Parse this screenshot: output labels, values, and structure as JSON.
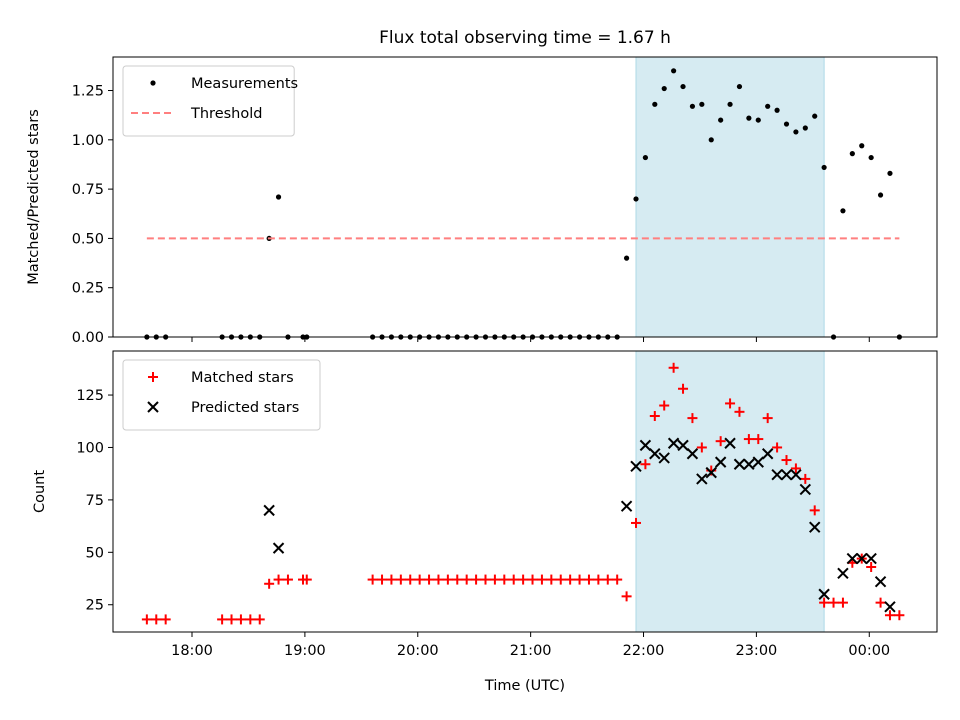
{
  "chart_data": [
    {
      "type": "scatter",
      "title": "Flux total observing time = 1.67 h",
      "ylabel": "Matched/Predicted stars",
      "xlabel": "",
      "xlim": [
        "17:18",
        "00:36"
      ],
      "ylim": [
        0,
        1.42
      ],
      "yticks": [
        0.0,
        0.25,
        0.5,
        0.75,
        1.0,
        1.25
      ],
      "ytick_labels": [
        "0.00",
        "0.25",
        "0.50",
        "0.75",
        "1.00",
        "1.25"
      ],
      "legend_position": "top-left",
      "shaded_span": [
        "21:56",
        "23:36"
      ],
      "shade_color": "#add8e6",
      "series": [
        {
          "name": "Measurements",
          "marker": "dot",
          "color": "#000000",
          "points": [
            [
              "17:36",
              0.0
            ],
            [
              "17:41",
              0.0
            ],
            [
              "17:46",
              0.0
            ],
            [
              "18:16",
              0.0
            ],
            [
              "18:21",
              0.0
            ],
            [
              "18:26",
              0.0
            ],
            [
              "18:31",
              0.0
            ],
            [
              "18:36",
              0.0
            ],
            [
              "18:41",
              0.5
            ],
            [
              "18:46",
              0.71
            ],
            [
              "18:51",
              0.0
            ],
            [
              "18:59",
              0.0
            ],
            [
              "19:01",
              0.0
            ],
            [
              "19:36",
              0.0
            ],
            [
              "19:41",
              0.0
            ],
            [
              "19:46",
              0.0
            ],
            [
              "19:51",
              0.0
            ],
            [
              "19:56",
              0.0
            ],
            [
              "20:01",
              0.0
            ],
            [
              "20:06",
              0.0
            ],
            [
              "20:11",
              0.0
            ],
            [
              "20:16",
              0.0
            ],
            [
              "20:21",
              0.0
            ],
            [
              "20:26",
              0.0
            ],
            [
              "20:31",
              0.0
            ],
            [
              "20:36",
              0.0
            ],
            [
              "20:41",
              0.0
            ],
            [
              "20:46",
              0.0
            ],
            [
              "20:51",
              0.0
            ],
            [
              "20:56",
              0.0
            ],
            [
              "21:01",
              0.0
            ],
            [
              "21:06",
              0.0
            ],
            [
              "21:11",
              0.0
            ],
            [
              "21:16",
              0.0
            ],
            [
              "21:21",
              0.0
            ],
            [
              "21:26",
              0.0
            ],
            [
              "21:31",
              0.0
            ],
            [
              "21:36",
              0.0
            ],
            [
              "21:41",
              0.0
            ],
            [
              "21:46",
              0.0
            ],
            [
              "21:51",
              0.4
            ],
            [
              "21:56",
              0.7
            ],
            [
              "22:01",
              0.91
            ],
            [
              "22:06",
              1.18
            ],
            [
              "22:11",
              1.26
            ],
            [
              "22:16",
              1.35
            ],
            [
              "22:21",
              1.27
            ],
            [
              "22:26",
              1.17
            ],
            [
              "22:31",
              1.18
            ],
            [
              "22:36",
              1.0
            ],
            [
              "22:41",
              1.1
            ],
            [
              "22:46",
              1.18
            ],
            [
              "22:51",
              1.27
            ],
            [
              "22:56",
              1.11
            ],
            [
              "23:01",
              1.1
            ],
            [
              "23:06",
              1.17
            ],
            [
              "23:11",
              1.15
            ],
            [
              "23:16",
              1.08
            ],
            [
              "23:21",
              1.04
            ],
            [
              "23:26",
              1.06
            ],
            [
              "23:31",
              1.12
            ],
            [
              "23:36",
              0.86
            ],
            [
              "23:41",
              0.0
            ],
            [
              "23:46",
              0.64
            ],
            [
              "23:51",
              0.93
            ],
            [
              "23:56",
              0.97
            ],
            [
              "00:01",
              0.91
            ],
            [
              "00:06",
              0.72
            ],
            [
              "00:11",
              0.83
            ],
            [
              "00:16",
              0.0
            ]
          ]
        },
        {
          "name": "Threshold",
          "style": "dashed-line",
          "color": "#ff7f7f",
          "points": [
            [
              "17:36",
              0.5
            ],
            [
              "00:16",
              0.5
            ]
          ]
        }
      ]
    },
    {
      "type": "scatter",
      "title": "",
      "ylabel": "Count",
      "xlabel": "Time (UTC)",
      "xlim": [
        "17:18",
        "00:36"
      ],
      "ylim": [
        12,
        146
      ],
      "yticks": [
        25,
        50,
        75,
        100,
        125
      ],
      "ytick_labels": [
        "25",
        "50",
        "75",
        "100",
        "125"
      ],
      "xticks": [
        "18:00",
        "19:00",
        "20:00",
        "21:00",
        "22:00",
        "23:00",
        "00:00"
      ],
      "xtick_labels": [
        "18:00",
        "19:00",
        "20:00",
        "21:00",
        "22:00",
        "23:00",
        "00:00"
      ],
      "legend_position": "top-left",
      "shaded_span": [
        "21:56",
        "23:36"
      ],
      "shade_color": "#add8e6",
      "series": [
        {
          "name": "Matched stars",
          "marker": "plus",
          "color": "#ff0000",
          "points": [
            [
              "17:36",
              18
            ],
            [
              "17:41",
              18
            ],
            [
              "17:46",
              18
            ],
            [
              "18:16",
              18
            ],
            [
              "18:21",
              18
            ],
            [
              "18:26",
              18
            ],
            [
              "18:31",
              18
            ],
            [
              "18:36",
              18
            ],
            [
              "18:41",
              35
            ],
            [
              "18:46",
              37
            ],
            [
              "18:51",
              37
            ],
            [
              "18:59",
              37
            ],
            [
              "19:01",
              37
            ],
            [
              "19:36",
              37
            ],
            [
              "19:41",
              37
            ],
            [
              "19:46",
              37
            ],
            [
              "19:51",
              37
            ],
            [
              "19:56",
              37
            ],
            [
              "20:01",
              37
            ],
            [
              "20:06",
              37
            ],
            [
              "20:11",
              37
            ],
            [
              "20:16",
              37
            ],
            [
              "20:21",
              37
            ],
            [
              "20:26",
              37
            ],
            [
              "20:31",
              37
            ],
            [
              "20:36",
              37
            ],
            [
              "20:41",
              37
            ],
            [
              "20:46",
              37
            ],
            [
              "20:51",
              37
            ],
            [
              "20:56",
              37
            ],
            [
              "21:01",
              37
            ],
            [
              "21:06",
              37
            ],
            [
              "21:11",
              37
            ],
            [
              "21:16",
              37
            ],
            [
              "21:21",
              37
            ],
            [
              "21:26",
              37
            ],
            [
              "21:31",
              37
            ],
            [
              "21:36",
              37
            ],
            [
              "21:41",
              37
            ],
            [
              "21:46",
              37
            ],
            [
              "21:51",
              29
            ],
            [
              "21:56",
              64
            ],
            [
              "22:01",
              92
            ],
            [
              "22:06",
              115
            ],
            [
              "22:11",
              120
            ],
            [
              "22:16",
              138
            ],
            [
              "22:21",
              128
            ],
            [
              "22:26",
              114
            ],
            [
              "22:31",
              100
            ],
            [
              "22:36",
              89
            ],
            [
              "22:41",
              103
            ],
            [
              "22:46",
              121
            ],
            [
              "22:51",
              117
            ],
            [
              "22:56",
              104
            ],
            [
              "23:01",
              104
            ],
            [
              "23:06",
              114
            ],
            [
              "23:11",
              100
            ],
            [
              "23:16",
              94
            ],
            [
              "23:21",
              90
            ],
            [
              "23:26",
              85
            ],
            [
              "23:31",
              70
            ],
            [
              "23:36",
              26
            ],
            [
              "23:41",
              26
            ],
            [
              "23:46",
              26
            ],
            [
              "23:51",
              45
            ],
            [
              "23:56",
              47
            ],
            [
              "00:01",
              43
            ],
            [
              "00:06",
              26
            ],
            [
              "00:11",
              20
            ],
            [
              "00:16",
              20
            ]
          ]
        },
        {
          "name": "Predicted stars",
          "marker": "x",
          "color": "#000000",
          "points": [
            [
              "18:41",
              70
            ],
            [
              "18:46",
              52
            ],
            [
              "21:51",
              72
            ],
            [
              "21:56",
              91
            ],
            [
              "22:01",
              101
            ],
            [
              "22:06",
              97
            ],
            [
              "22:11",
              95
            ],
            [
              "22:16",
              102
            ],
            [
              "22:21",
              101
            ],
            [
              "22:26",
              97
            ],
            [
              "22:31",
              85
            ],
            [
              "22:36",
              88
            ],
            [
              "22:41",
              93
            ],
            [
              "22:46",
              102
            ],
            [
              "22:51",
              92
            ],
            [
              "22:56",
              92
            ],
            [
              "23:01",
              93
            ],
            [
              "23:06",
              97
            ],
            [
              "23:11",
              87
            ],
            [
              "23:16",
              87
            ],
            [
              "23:21",
              87
            ],
            [
              "23:26",
              80
            ],
            [
              "23:31",
              62
            ],
            [
              "23:36",
              30
            ],
            [
              "23:46",
              40
            ],
            [
              "23:51",
              47
            ],
            [
              "23:56",
              47
            ],
            [
              "00:01",
              47
            ],
            [
              "00:06",
              36
            ],
            [
              "00:11",
              24
            ]
          ]
        }
      ]
    }
  ]
}
